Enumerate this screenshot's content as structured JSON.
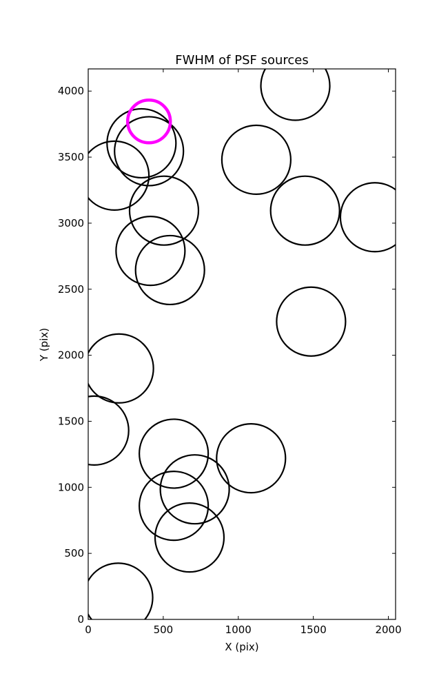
{
  "chart_data": {
    "type": "scatter",
    "title": "FWHM of PSF sources",
    "xlabel": "X (pix)",
    "ylabel": "Y (pix)",
    "xlim": [
      0,
      2048
    ],
    "ylim": [
      0,
      4168
    ],
    "xticks": [
      0,
      500,
      1000,
      1500,
      2000
    ],
    "yticks": [
      0,
      500,
      1000,
      1500,
      2000,
      2500,
      3000,
      3500,
      4000
    ],
    "grid": false,
    "marker": "open-circle",
    "marker_size_units": "FWHM (scaled)",
    "colors": {
      "normal": "#000000",
      "highlight": "#ff00ff",
      "frame": "#000000"
    },
    "series": [
      {
        "values": [
          {
            "x": 1380,
            "y": 4040,
            "size": 1.0
          },
          {
            "x": 355,
            "y": 3605,
            "size": 1.0
          },
          {
            "x": 405,
            "y": 3545,
            "size": 1.0
          },
          {
            "x": 175,
            "y": 3360,
            "size": 1.0
          },
          {
            "x": 1120,
            "y": 3480,
            "size": 1.0
          },
          {
            "x": 505,
            "y": 3095,
            "size": 1.0
          },
          {
            "x": 1445,
            "y": 3095,
            "size": 1.0
          },
          {
            "x": 1910,
            "y": 3045,
            "size": 1.0
          },
          {
            "x": 415,
            "y": 2790,
            "size": 1.0
          },
          {
            "x": 545,
            "y": 2645,
            "size": 1.0
          },
          {
            "x": 1485,
            "y": 2255,
            "size": 1.0
          },
          {
            "x": 205,
            "y": 1900,
            "size": 1.0
          },
          {
            "x": 40,
            "y": 1430,
            "size": 1.0
          },
          {
            "x": 570,
            "y": 1255,
            "size": 1.0
          },
          {
            "x": 1085,
            "y": 1220,
            "size": 1.0
          },
          {
            "x": 710,
            "y": 985,
            "size": 1.0
          },
          {
            "x": 570,
            "y": 860,
            "size": 1.0
          },
          {
            "x": 675,
            "y": 620,
            "size": 1.0
          },
          {
            "x": 200,
            "y": 165,
            "size": 1.0
          }
        ]
      },
      {
        "values": [
          {
            "x": 405,
            "y": 3770,
            "size": 0.62
          }
        ]
      }
    ]
  }
}
